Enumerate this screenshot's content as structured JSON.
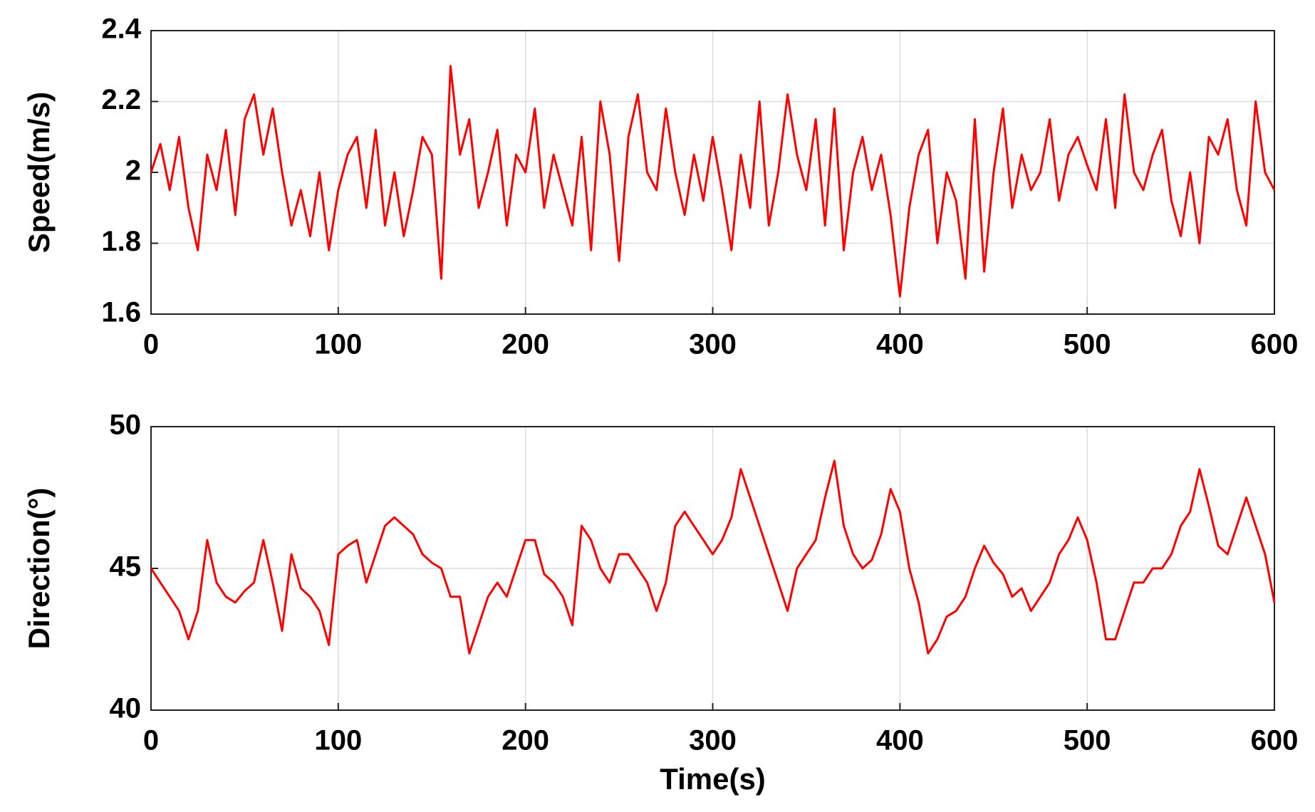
{
  "chart_data": [
    {
      "type": "line",
      "ylabel": "Speed(m/s)",
      "x": [
        0,
        5,
        10,
        15,
        20,
        25,
        30,
        35,
        40,
        45,
        50,
        55,
        60,
        65,
        70,
        75,
        80,
        85,
        90,
        95,
        100,
        105,
        110,
        115,
        120,
        125,
        130,
        135,
        140,
        145,
        150,
        155,
        160,
        165,
        170,
        175,
        180,
        185,
        190,
        195,
        200,
        205,
        210,
        215,
        220,
        225,
        230,
        235,
        240,
        245,
        250,
        255,
        260,
        265,
        270,
        275,
        280,
        285,
        290,
        295,
        300,
        305,
        310,
        315,
        320,
        325,
        330,
        335,
        340,
        345,
        350,
        355,
        360,
        365,
        370,
        375,
        380,
        385,
        390,
        395,
        400,
        405,
        410,
        415,
        420,
        425,
        430,
        435,
        440,
        445,
        450,
        455,
        460,
        465,
        470,
        475,
        480,
        485,
        490,
        495,
        500,
        505,
        510,
        515,
        520,
        525,
        530,
        535,
        540,
        545,
        550,
        555,
        560,
        565,
        570,
        575,
        580,
        585,
        590,
        595,
        600
      ],
      "series": [
        {
          "color": "#ff0000",
          "values": [
            2.0,
            2.08,
            1.95,
            2.1,
            1.9,
            1.78,
            2.05,
            1.95,
            2.12,
            1.88,
            2.15,
            2.22,
            2.05,
            2.18,
            2.0,
            1.85,
            1.95,
            1.82,
            2.0,
            1.78,
            1.95,
            2.05,
            2.1,
            1.9,
            2.12,
            1.85,
            2.0,
            1.82,
            1.95,
            2.1,
            2.05,
            1.7,
            2.3,
            2.05,
            2.15,
            1.9,
            2.0,
            2.12,
            1.85,
            2.05,
            2.0,
            2.18,
            1.9,
            2.05,
            1.95,
            1.85,
            2.1,
            1.78,
            2.2,
            2.05,
            1.75,
            2.1,
            2.22,
            2.0,
            1.95,
            2.18,
            2.0,
            1.88,
            2.05,
            1.92,
            2.1,
            1.95,
            1.78,
            2.05,
            1.9,
            2.2,
            1.85,
            2.0,
            2.22,
            2.05,
            1.95,
            2.15,
            1.85,
            2.18,
            1.78,
            2.0,
            2.1,
            1.95,
            2.05,
            1.88,
            1.65,
            1.9,
            2.05,
            2.12,
            1.8,
            2.0,
            1.92,
            1.7,
            2.15,
            1.72,
            2.0,
            2.18,
            1.9,
            2.05,
            1.95,
            2.0,
            2.15,
            1.92,
            2.05,
            2.1,
            2.02,
            1.95,
            2.15,
            1.9,
            2.22,
            2.0,
            1.95,
            2.05,
            2.12,
            1.92,
            1.82,
            2.0,
            1.8,
            2.1,
            2.05,
            2.15,
            1.95,
            1.85,
            2.2,
            2.0,
            1.95
          ]
        }
      ],
      "xlim": [
        0,
        600
      ],
      "xticks": [
        0,
        100,
        200,
        300,
        400,
        500,
        600
      ],
      "ylim": [
        1.6,
        2.4
      ],
      "yticks": [
        1.6,
        1.8,
        2,
        2.2,
        2.4
      ],
      "grid": true
    },
    {
      "type": "line",
      "ylabel": "Direction(°)",
      "xlabel": "Time(s)",
      "x": [
        0,
        5,
        10,
        15,
        20,
        25,
        30,
        35,
        40,
        45,
        50,
        55,
        60,
        65,
        70,
        75,
        80,
        85,
        90,
        95,
        100,
        105,
        110,
        115,
        120,
        125,
        130,
        135,
        140,
        145,
        150,
        155,
        160,
        165,
        170,
        175,
        180,
        185,
        190,
        195,
        200,
        205,
        210,
        215,
        220,
        225,
        230,
        235,
        240,
        245,
        250,
        255,
        260,
        265,
        270,
        275,
        280,
        285,
        290,
        295,
        300,
        305,
        310,
        315,
        320,
        325,
        330,
        335,
        340,
        345,
        350,
        355,
        360,
        365,
        370,
        375,
        380,
        385,
        390,
        395,
        400,
        405,
        410,
        415,
        420,
        425,
        430,
        435,
        440,
        445,
        450,
        455,
        460,
        465,
        470,
        475,
        480,
        485,
        490,
        495,
        500,
        505,
        510,
        515,
        520,
        525,
        530,
        535,
        540,
        545,
        550,
        555,
        560,
        565,
        570,
        575,
        580,
        585,
        590,
        595,
        600
      ],
      "series": [
        {
          "color": "#ff0000",
          "values": [
            45,
            44.5,
            44,
            43.5,
            42.5,
            43.5,
            46,
            44.5,
            44,
            43.8,
            44.2,
            44.5,
            46,
            44.5,
            42.8,
            45.5,
            44.3,
            44,
            43.5,
            42.3,
            45.5,
            45.8,
            46,
            44.5,
            45.5,
            46.5,
            46.8,
            46.5,
            46.2,
            45.5,
            45.2,
            45,
            44,
            44,
            42,
            43,
            44,
            44.5,
            44,
            45,
            46,
            46,
            44.8,
            44.5,
            44,
            43,
            46.5,
            46,
            45,
            44.5,
            45.5,
            45.5,
            45,
            44.5,
            43.5,
            44.5,
            46.5,
            47,
            46.5,
            46,
            45.5,
            46,
            46.8,
            48.5,
            47.5,
            46.5,
            45.5,
            44.5,
            43.5,
            45,
            45.5,
            46,
            47.5,
            48.8,
            46.5,
            45.5,
            45,
            45.3,
            46.2,
            47.8,
            47,
            45,
            43.8,
            42,
            42.5,
            43.3,
            43.5,
            44,
            45,
            45.8,
            45.2,
            44.8,
            44,
            44.3,
            43.5,
            44,
            44.5,
            45.5,
            46,
            46.8,
            46,
            44.5,
            42.5,
            42.5,
            43.5,
            44.5,
            44.5,
            45,
            45,
            45.5,
            46.5,
            47,
            48.5,
            47.2,
            45.8,
            45.5,
            46.5,
            47.5,
            46.5,
            45.5,
            43.8
          ]
        }
      ],
      "xlim": [
        0,
        600
      ],
      "xticks": [
        0,
        100,
        200,
        300,
        400,
        500,
        600
      ],
      "ylim": [
        40,
        50
      ],
      "yticks": [
        40,
        45,
        50
      ],
      "grid": true
    }
  ]
}
